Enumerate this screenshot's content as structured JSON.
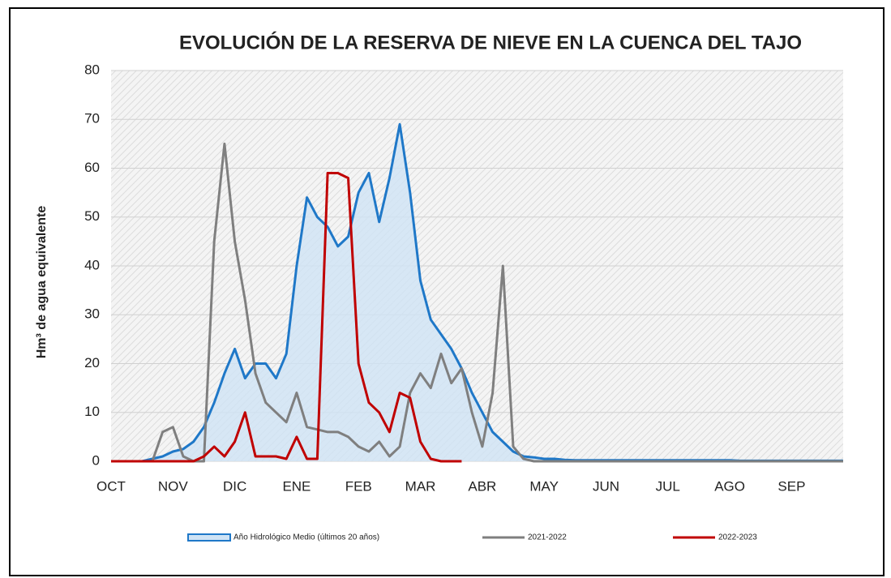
{
  "chart_data": {
    "type": "line",
    "title": "EVOLUCIÓN DE LA RESERVA DE NIEVE EN LA CUENCA DEL TAJO",
    "y_label": "Hm³  de agua equivalente",
    "categories": [
      "OCT",
      null,
      null,
      null,
      null,
      null,
      "NOV",
      null,
      null,
      null,
      null,
      null,
      "DIC",
      null,
      null,
      null,
      null,
      null,
      "ENE",
      null,
      null,
      null,
      null,
      null,
      "FEB",
      null,
      null,
      null,
      null,
      null,
      "MAR",
      null,
      null,
      null,
      null,
      null,
      "ABR",
      null,
      null,
      null,
      null,
      null,
      "MAY",
      null,
      null,
      null,
      null,
      null,
      "JUN",
      null,
      null,
      null,
      null,
      null,
      "JUL",
      null,
      null,
      null,
      null,
      null,
      "AGO",
      null,
      null,
      null,
      null,
      null,
      "SEP",
      null,
      null,
      null,
      null,
      null
    ],
    "series": [
      {
        "name": "Año Hidrológico Medio (últimos 20 años)",
        "color": "#1f78c8",
        "fill": "#cfe3f5",
        "values": [
          0,
          0,
          0,
          0,
          0.5,
          1,
          2,
          2.5,
          4,
          7,
          12,
          18,
          23,
          17,
          20,
          20,
          17,
          22,
          40,
          54,
          50,
          48,
          44,
          46,
          55,
          59,
          49,
          58,
          69,
          55,
          37,
          29,
          26,
          23,
          19,
          14,
          10,
          6,
          4,
          2,
          1,
          0.8,
          0.5,
          0.5,
          0.3,
          0.2,
          0.2,
          0.2,
          0.2,
          0.2,
          0.2,
          0.2,
          0.2,
          0.2,
          0.2,
          0.2,
          0.2,
          0.2,
          0.2,
          0.2,
          0.2,
          0.1,
          0.1,
          0.1,
          0.1,
          0.1,
          0.1,
          0.1,
          0.1,
          0.1,
          0.1,
          0.1
        ]
      },
      {
        "name": "2021-2022",
        "color": "#7f7f7f",
        "values": [
          0,
          0,
          0,
          0,
          0,
          6,
          7,
          1,
          0,
          0,
          45,
          65,
          45,
          33,
          18,
          12,
          10,
          8,
          14,
          7,
          6.5,
          6,
          6,
          5,
          3,
          2,
          4,
          1,
          3,
          14,
          18,
          15,
          22,
          16,
          19,
          10,
          3,
          14,
          40,
          3,
          0.5,
          0,
          0,
          0,
          0,
          0,
          0,
          0,
          0,
          0,
          0,
          0,
          0,
          0,
          0,
          0,
          0,
          0,
          0,
          0,
          0,
          0,
          0,
          0,
          0,
          0,
          0,
          0,
          0,
          0,
          0,
          0
        ]
      },
      {
        "name": "2022-2023",
        "color": "#c00000",
        "values": [
          0,
          0,
          0,
          0,
          0,
          0,
          0,
          0,
          0,
          1,
          3,
          1,
          4,
          10,
          1,
          1,
          1,
          0.5,
          5,
          0.5,
          0.5,
          59,
          59,
          58,
          20,
          12,
          10,
          6,
          14,
          13,
          4,
          0.5,
          0,
          0,
          0,
          null,
          null,
          null,
          null,
          null,
          null,
          null,
          null,
          null,
          null,
          null,
          null,
          null,
          null,
          null,
          null,
          null,
          null,
          null,
          null,
          null,
          null,
          null,
          null,
          null,
          null,
          null,
          null,
          null,
          null,
          null,
          null,
          null,
          null,
          null,
          null,
          null
        ]
      }
    ],
    "ylim": [
      0,
      80
    ],
    "yticks": [
      0,
      10,
      20,
      30,
      40,
      50,
      60,
      70,
      80
    ],
    "grid": true,
    "legend": "bottom"
  }
}
